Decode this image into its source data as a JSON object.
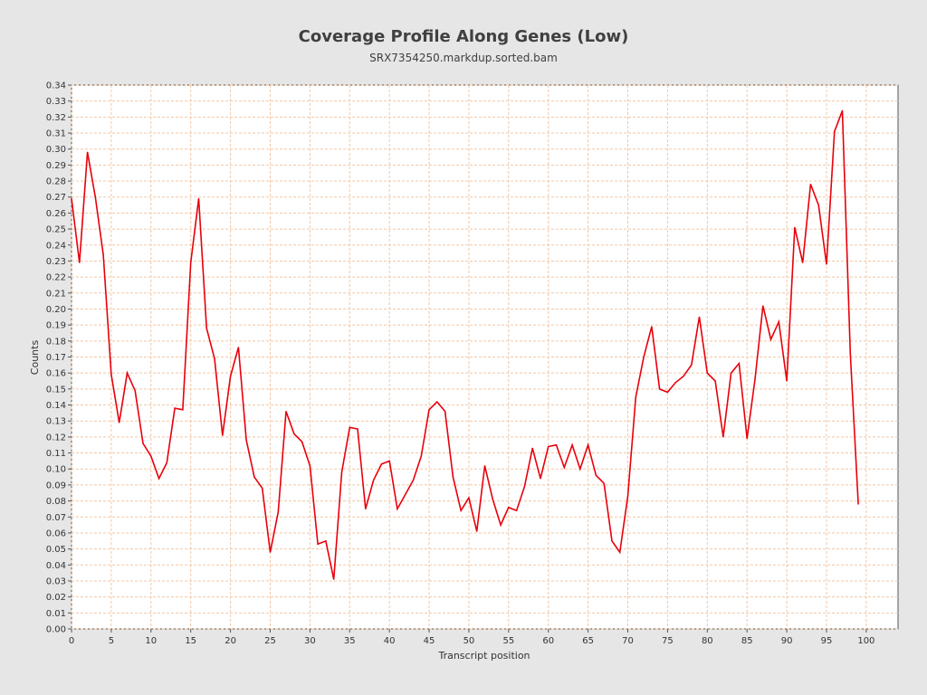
{
  "chart_data": {
    "type": "line",
    "title": "Coverage Profile Along Genes (Low)",
    "subtitle": "SRX7354250.markdup.sorted.bam",
    "xlabel": "Transcript position",
    "ylabel": "Counts",
    "xlim": [
      0,
      104
    ],
    "ylim": [
      0,
      0.34
    ],
    "x_ticks": [
      0,
      5,
      10,
      15,
      20,
      25,
      30,
      35,
      40,
      45,
      50,
      55,
      60,
      65,
      70,
      75,
      80,
      85,
      90,
      95,
      100
    ],
    "y_ticks": [
      "0.00",
      "0.01",
      "0.02",
      "0.03",
      "0.04",
      "0.05",
      "0.06",
      "0.07",
      "0.08",
      "0.09",
      "0.10",
      "0.11",
      "0.12",
      "0.13",
      "0.14",
      "0.15",
      "0.16",
      "0.17",
      "0.18",
      "0.19",
      "0.20",
      "0.21",
      "0.22",
      "0.23",
      "0.24",
      "0.25",
      "0.26",
      "0.27",
      "0.28",
      "0.29",
      "0.30",
      "0.31",
      "0.32",
      "0.33",
      "0.34"
    ],
    "grid": true,
    "series": [
      {
        "color": "#e8000b",
        "x": [
          0,
          1,
          2,
          3,
          4,
          5,
          6,
          7,
          8,
          9,
          10,
          11,
          12,
          13,
          14,
          15,
          16,
          17,
          18,
          19,
          20,
          21,
          22,
          23,
          24,
          25,
          26,
          27,
          28,
          29,
          30,
          31,
          32,
          33,
          34,
          35,
          36,
          37,
          38,
          39,
          40,
          41,
          42,
          43,
          44,
          45,
          46,
          47,
          48,
          49,
          50,
          51,
          52,
          53,
          54,
          55,
          56,
          57,
          58,
          59,
          60,
          61,
          62,
          63,
          64,
          65,
          66,
          67,
          68,
          69,
          70,
          71,
          72,
          73,
          74,
          75,
          76,
          77,
          78,
          79,
          80,
          81,
          82,
          83,
          84,
          85,
          86,
          87,
          88,
          89,
          90,
          91,
          92,
          93,
          94,
          95,
          96,
          97,
          98,
          99
        ],
        "y": [
          0.269,
          0.229,
          0.298,
          0.27,
          0.234,
          0.159,
          0.129,
          0.16,
          0.149,
          0.116,
          0.108,
          0.094,
          0.104,
          0.138,
          0.137,
          0.229,
          0.269,
          0.188,
          0.169,
          0.121,
          0.158,
          0.176,
          0.118,
          0.095,
          0.088,
          0.048,
          0.073,
          0.136,
          0.122,
          0.117,
          0.102,
          0.053,
          0.055,
          0.031,
          0.098,
          0.126,
          0.125,
          0.075,
          0.093,
          0.103,
          0.105,
          0.075,
          0.084,
          0.093,
          0.108,
          0.137,
          0.142,
          0.136,
          0.095,
          0.074,
          0.082,
          0.061,
          0.102,
          0.081,
          0.065,
          0.076,
          0.074,
          0.089,
          0.113,
          0.094,
          0.114,
          0.115,
          0.101,
          0.115,
          0.1,
          0.115,
          0.096,
          0.091,
          0.055,
          0.048,
          0.083,
          0.145,
          0.17,
          0.189,
          0.15,
          0.148,
          0.154,
          0.158,
          0.165,
          0.195,
          0.16,
          0.155,
          0.12,
          0.16,
          0.166,
          0.119,
          0.156,
          0.202,
          0.181,
          0.192,
          0.155,
          0.251,
          0.229,
          0.278,
          0.265,
          0.228,
          0.311,
          0.324,
          0.172,
          0.078
        ]
      }
    ]
  }
}
